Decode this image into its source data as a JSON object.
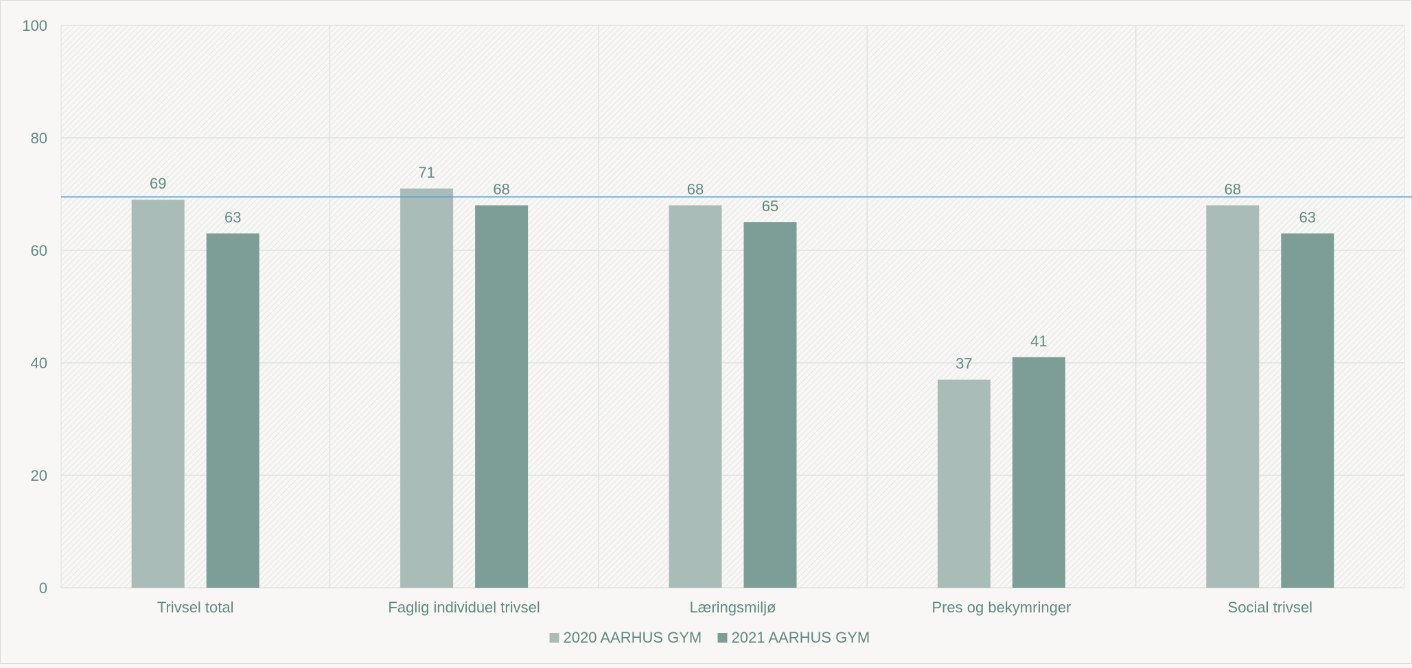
{
  "chart_data": {
    "type": "bar",
    "title": "",
    "xlabel": "",
    "ylabel": "",
    "categories": [
      "Trivsel total",
      "Faglig individuel trivsel",
      "Læringsmiljø",
      "Pres og bekymringer",
      "Social trivsel"
    ],
    "series": [
      {
        "name": "2020 AARHUS GYM",
        "values": [
          69,
          71,
          68,
          37,
          68
        ],
        "labels": [
          "69",
          "71",
          "68",
          "37",
          "68"
        ],
        "color": "#a9bcb8"
      },
      {
        "name": "2021 AARHUS GYM",
        "values": [
          63,
          68,
          65,
          41,
          63
        ],
        "labels": [
          "63",
          "68",
          "65",
          "41",
          "63"
        ],
        "color": "#7c9e97"
      }
    ],
    "ylim": [
      0,
      100
    ],
    "yticks": [
      0,
      20,
      40,
      60,
      80,
      100
    ],
    "reference_line": {
      "value": 69.5,
      "color": "#4aa3d4"
    },
    "grid": true,
    "plot_background": "hatched",
    "legend_position": "bottom"
  },
  "colors": {
    "text": "#5f8a83",
    "grid": "#dde3e1",
    "background": "#f8f7f5"
  }
}
